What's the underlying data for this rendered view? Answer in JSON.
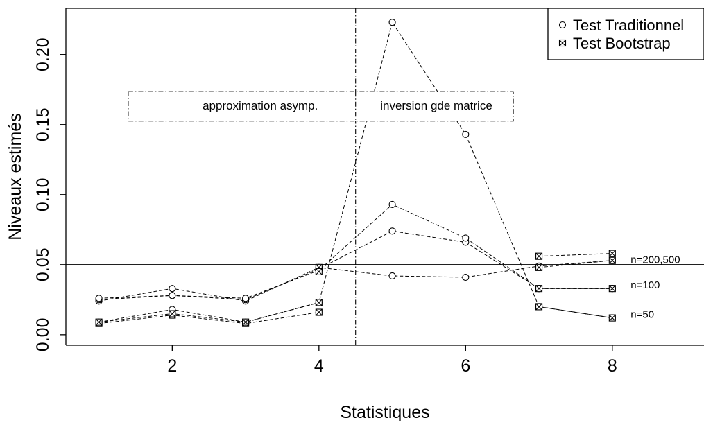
{
  "chart_data": {
    "type": "line",
    "xlabel": "Statistiques",
    "ylabel": "Niveaux estimés",
    "xlim": [
      0.55,
      9.25
    ],
    "ylim": [
      -0.0075,
      0.233
    ],
    "x_ticks": [
      2,
      4,
      6,
      8
    ],
    "y_ticks": [
      0.0,
      0.05,
      0.1,
      0.15,
      0.2
    ],
    "y_tick_labels": [
      "0.00",
      "0.05",
      "0.10",
      "0.15",
      "0.20"
    ],
    "grid": false,
    "legend": {
      "placement": "top-right",
      "entries": [
        {
          "label": "Test Traditionnel",
          "marker": "circle"
        },
        {
          "label": "Test Bootstrap",
          "marker": "boxed-x"
        }
      ]
    },
    "reference_line": {
      "y": 0.05
    },
    "vertical_line": {
      "x": 4.5
    },
    "annotations": [
      {
        "text": "approximation asymp.",
        "x": 3.2,
        "y": 0.163
      },
      {
        "text": "inversion gde matrice",
        "x": 5.6,
        "y": 0.163
      }
    ],
    "inline_labels": [
      {
        "text": "n=200,500",
        "x": 8.25,
        "y": 0.053
      },
      {
        "text": "n=100",
        "x": 8.25,
        "y": 0.035
      },
      {
        "text": "n=50",
        "x": 8.25,
        "y": 0.014
      }
    ],
    "series": [
      {
        "marker": "circle",
        "x": [
          1,
          2,
          3,
          4,
          5,
          6,
          7,
          8
        ],
        "values": [
          0.024,
          0.033,
          0.024,
          0.048,
          0.042,
          0.041,
          0.049,
          0.053
        ]
      },
      {
        "marker": "circle",
        "x": [
          1,
          2,
          3,
          4,
          5,
          6,
          7,
          8
        ],
        "values": [
          0.025,
          0.028,
          0.025,
          0.047,
          0.074,
          0.066,
          0.033,
          0.033
        ]
      },
      {
        "marker": "circle",
        "x": [
          1,
          2,
          3,
          4,
          5,
          6,
          7,
          8
        ],
        "values": [
          0.026,
          0.028,
          0.026,
          0.046,
          0.093,
          0.069,
          0.033,
          0.033
        ]
      },
      {
        "marker": "circle",
        "x": [
          1,
          2,
          3,
          4,
          5,
          6,
          7,
          8
        ],
        "values": [
          0.009,
          0.018,
          0.009,
          0.023,
          0.223,
          0.143,
          0.02,
          0.012
        ]
      },
      {
        "marker": "boxed-x",
        "x": [
          1,
          2,
          3,
          4,
          5,
          6,
          7,
          8
        ],
        "values": [
          0.008,
          0.014,
          0.008,
          0.016,
          null,
          null,
          0.02,
          0.012
        ]
      },
      {
        "marker": "boxed-x",
        "x": [
          1,
          2,
          3,
          4,
          5,
          6,
          7,
          8
        ],
        "values": [
          0.009,
          0.015,
          0.009,
          0.023,
          null,
          null,
          0.033,
          0.033
        ]
      },
      {
        "marker": "boxed-x",
        "x": [
          1,
          2,
          3,
          4,
          5,
          6,
          7,
          8
        ],
        "values": [
          null,
          null,
          null,
          0.048,
          null,
          null,
          0.048,
          0.053
        ]
      },
      {
        "marker": "boxed-x",
        "x": [
          1,
          2,
          3,
          4,
          5,
          6,
          7,
          8
        ],
        "values": [
          null,
          null,
          null,
          0.045,
          null,
          null,
          0.056,
          0.058
        ]
      }
    ]
  }
}
